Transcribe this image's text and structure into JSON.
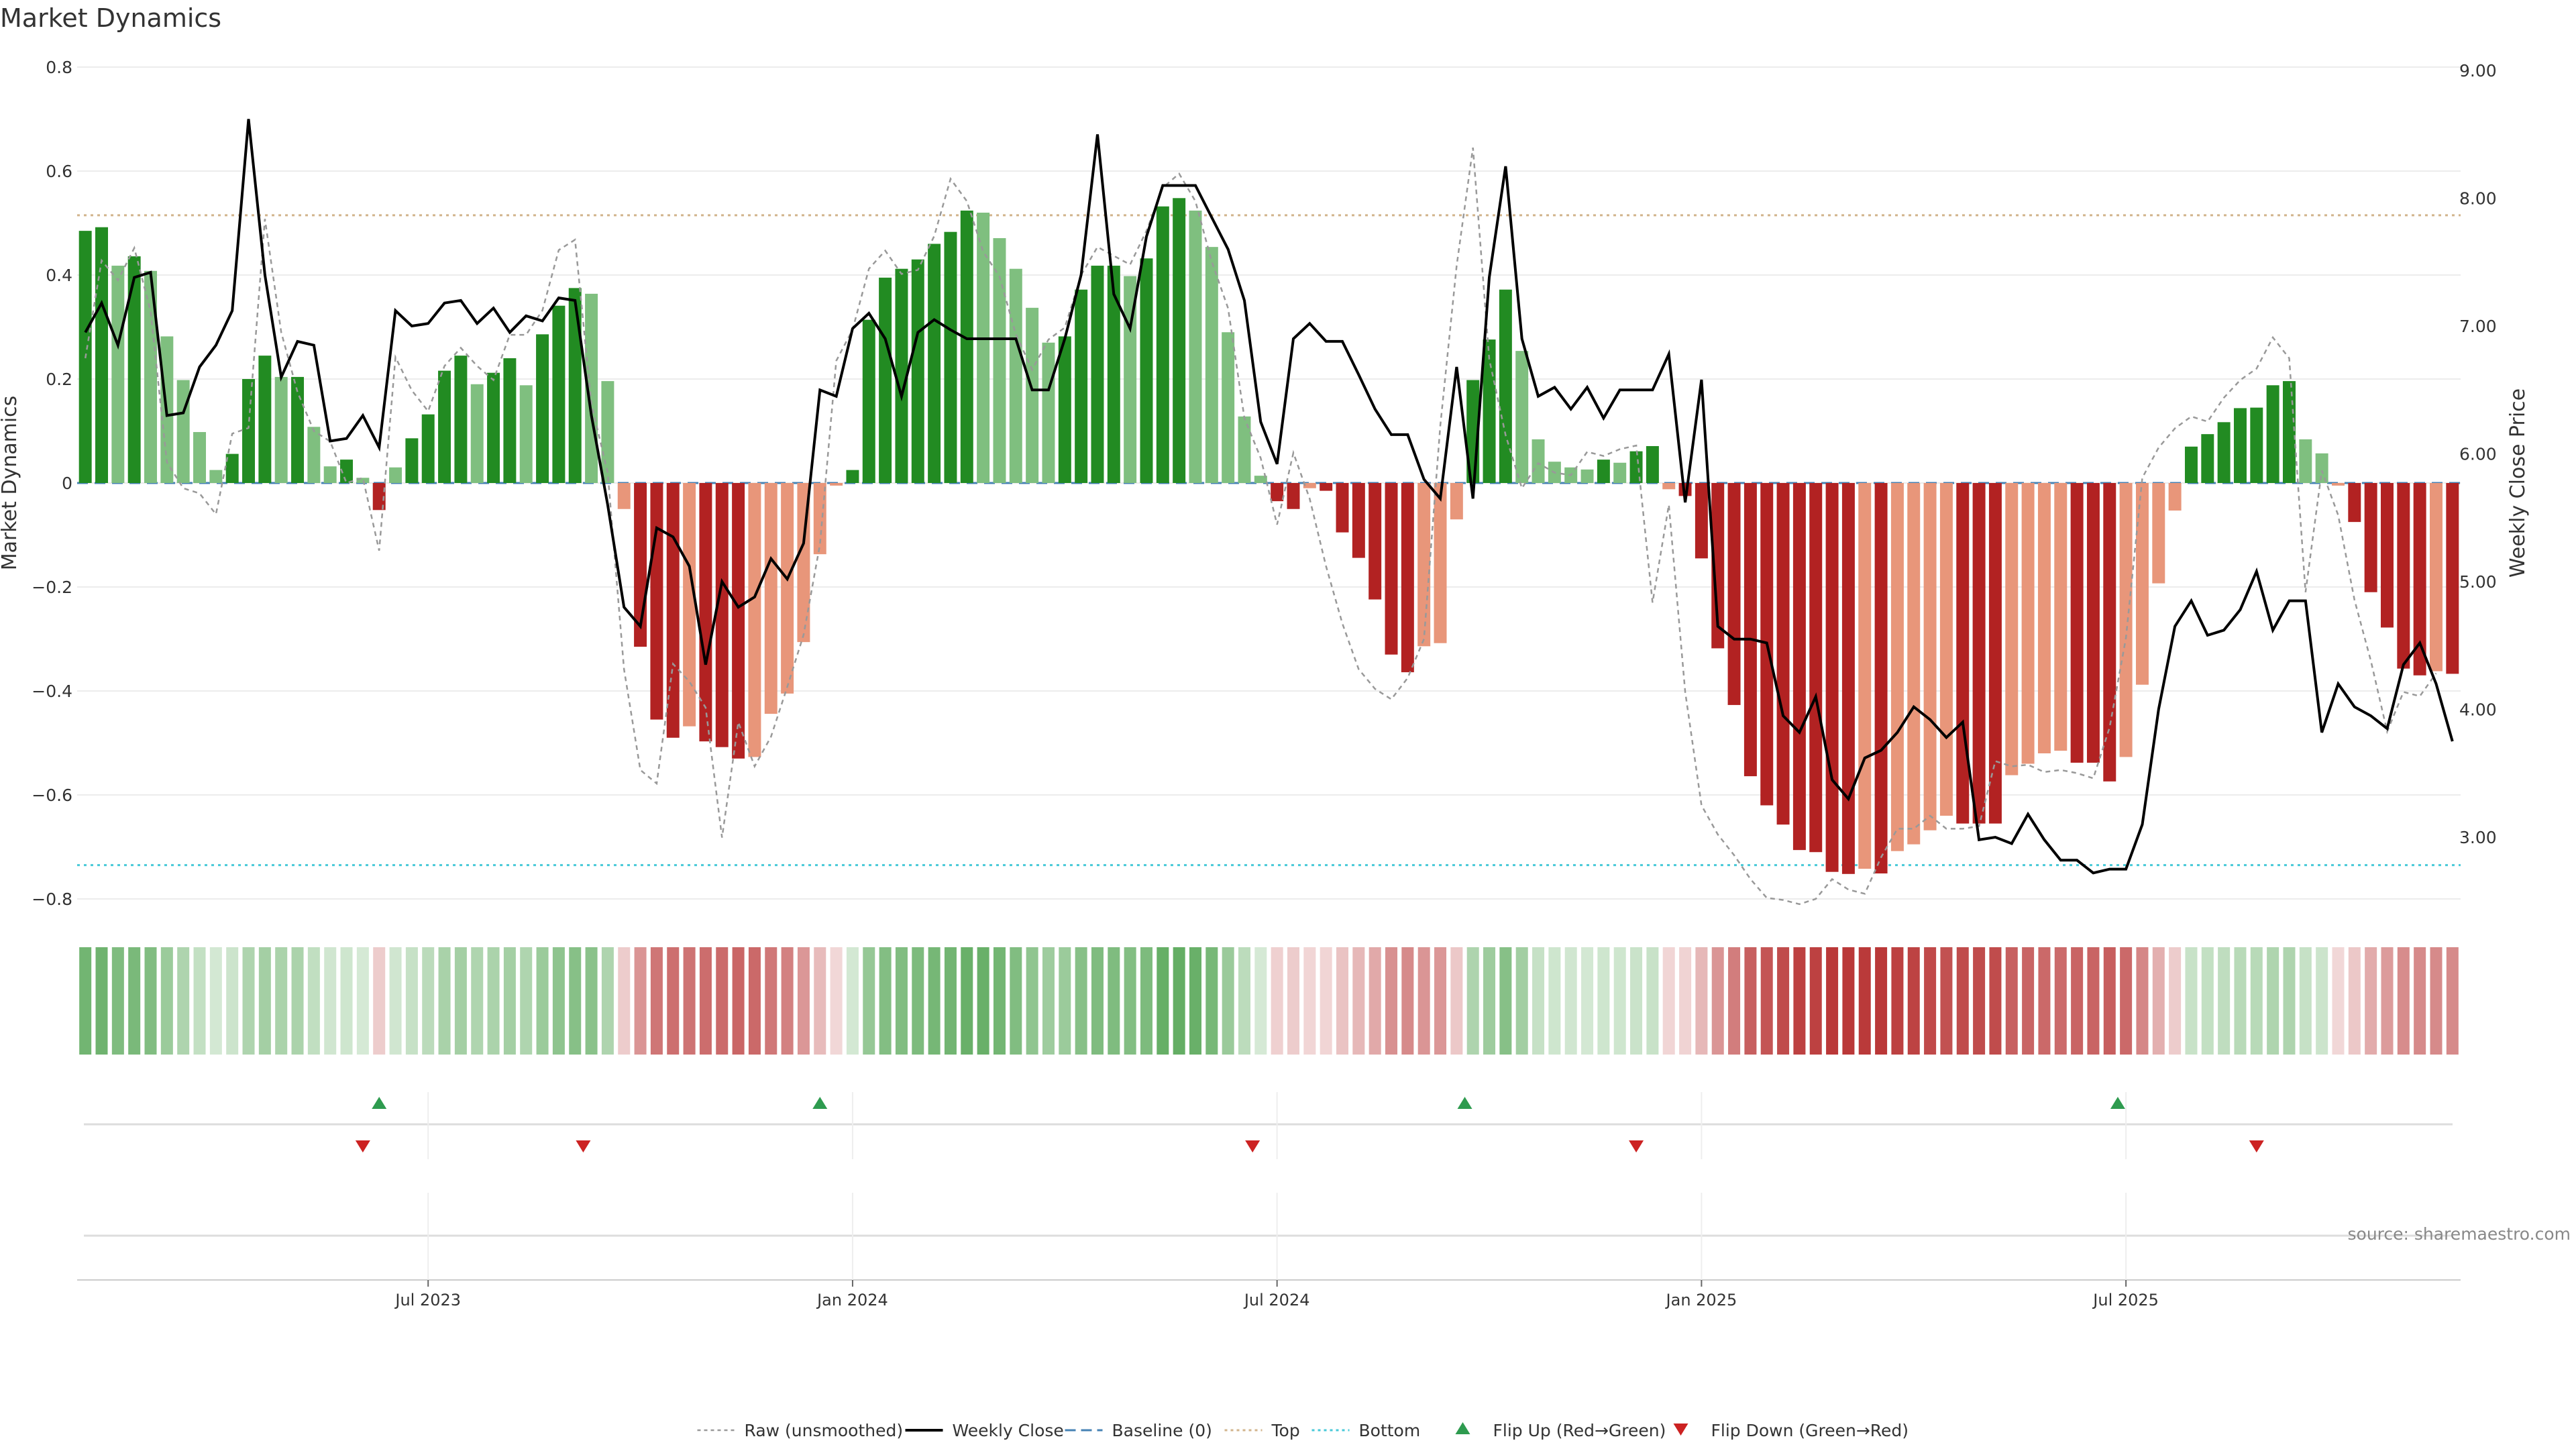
{
  "chart_data": {
    "type": "bar",
    "title": "Market Dynamics",
    "ylabel": "Market Dynamics",
    "y2label": "Weekly Close Price",
    "ylim": [
      -0.85,
      0.8
    ],
    "y2lim": [
      2.35,
      9.0
    ],
    "yticks": [
      {
        "v": 0.8,
        "label": "0.8"
      },
      {
        "v": 0.6,
        "label": "0.6"
      },
      {
        "v": 0.4,
        "label": "0.4"
      },
      {
        "v": 0.2,
        "label": "0.2"
      },
      {
        "v": 0,
        "label": "0"
      },
      {
        "v": -0.2,
        "label": "−0.2"
      },
      {
        "v": -0.4,
        "label": "−0.4"
      },
      {
        "v": -0.6,
        "label": "−0.6"
      },
      {
        "v": -0.8,
        "label": "−0.8"
      }
    ],
    "y2ticks": [
      {
        "v": 9,
        "label": "9.00"
      },
      {
        "v": 8,
        "label": "8.00"
      },
      {
        "v": 7,
        "label": "7.00"
      },
      {
        "v": 6,
        "label": "6.00"
      },
      {
        "v": 5,
        "label": "5.00"
      },
      {
        "v": 4,
        "label": "4.00"
      },
      {
        "v": 3,
        "label": "3.00"
      }
    ],
    "date_ticks": [
      {
        "week": 21.5,
        "label": "Jul 2023"
      },
      {
        "week": 47.5,
        "label": "Jan 2024"
      },
      {
        "week": 73.5,
        "label": "Jul 2024"
      },
      {
        "week": 99.5,
        "label": "Jan 2025"
      },
      {
        "week": 125.5,
        "label": "Jul 2025"
      }
    ],
    "top_line": 0.515,
    "bottom_line": -0.735,
    "bars": [
      0.485,
      0.492,
      0.418,
      0.436,
      0.408,
      0.282,
      0.198,
      0.098,
      0.025,
      0.056,
      0.2,
      0.245,
      0.204,
      0.204,
      0.108,
      0.032,
      0.045,
      0.01,
      -0.052,
      0.03,
      0.086,
      0.132,
      0.216,
      0.245,
      0.19,
      0.212,
      0.24,
      0.188,
      0.286,
      0.341,
      0.375,
      0.364,
      0.196,
      -0.05,
      -0.315,
      -0.455,
      -0.49,
      -0.468,
      -0.497,
      -0.508,
      -0.53,
      -0.527,
      -0.444,
      -0.405,
      -0.306,
      -0.137,
      -0.005,
      0.025,
      0.314,
      0.395,
      0.412,
      0.43,
      0.46,
      0.483,
      0.524,
      0.52,
      0.471,
      0.412,
      0.337,
      0.27,
      0.282,
      0.372,
      0.418,
      0.418,
      0.398,
      0.432,
      0.532,
      0.548,
      0.524,
      0.454,
      0.29,
      0.128,
      0.014,
      -0.035,
      -0.05,
      -0.01,
      -0.015,
      -0.095,
      -0.144,
      -0.224,
      -0.33,
      -0.364,
      -0.314,
      -0.308,
      -0.07,
      0.198,
      0.276,
      0.372,
      0.254,
      0.084,
      0.041,
      0.03,
      0.026,
      0.045,
      0.039,
      0.061,
      0.071,
      -0.012,
      -0.025,
      -0.145,
      -0.318,
      -0.427,
      -0.564,
      -0.62,
      -0.657,
      -0.706,
      -0.71,
      -0.748,
      -0.752,
      -0.742,
      -0.751,
      -0.708,
      -0.695,
      -0.668,
      -0.64,
      -0.655,
      -0.655,
      -0.655,
      -0.562,
      -0.54,
      -0.52,
      -0.515,
      -0.538,
      -0.538,
      -0.574,
      -0.527,
      -0.388,
      -0.193,
      -0.053,
      0.07,
      0.094,
      0.117,
      0.144,
      0.145,
      0.188,
      0.196,
      0.084,
      0.057,
      -0.005,
      -0.075,
      -0.21,
      -0.278,
      -0.357,
      -0.37,
      -0.362,
      -0.367
    ],
    "raw": [
      0.24,
      0.428,
      0.39,
      0.452,
      0.33,
      0.04,
      -0.01,
      -0.02,
      -0.06,
      0.095,
      0.106,
      0.508,
      0.29,
      0.175,
      0.1,
      0.08,
      0.0,
      0.01,
      -0.13,
      0.242,
      0.178,
      0.138,
      0.225,
      0.26,
      0.225,
      0.198,
      0.285,
      0.285,
      0.332,
      0.448,
      0.468,
      0.152,
      0.02,
      -0.358,
      -0.552,
      -0.578,
      -0.348,
      -0.382,
      -0.432,
      -0.682,
      -0.46,
      -0.545,
      -0.488,
      -0.392,
      -0.292,
      -0.118,
      0.235,
      0.295,
      0.412,
      0.447,
      0.402,
      0.41,
      0.475,
      0.585,
      0.542,
      0.445,
      0.397,
      0.286,
      0.218,
      0.276,
      0.299,
      0.4,
      0.454,
      0.437,
      0.42,
      0.485,
      0.568,
      0.595,
      0.542,
      0.426,
      0.336,
      0.125,
      0.048,
      -0.08,
      0.058,
      -0.03,
      -0.16,
      -0.27,
      -0.358,
      -0.396,
      -0.416,
      -0.375,
      -0.3,
      0.11,
      0.418,
      0.645,
      0.238,
      0.092,
      -0.01,
      0.038,
      0.02,
      0.015,
      0.06,
      0.052,
      0.065,
      0.072,
      -0.23,
      -0.042,
      -0.402,
      -0.62,
      -0.676,
      -0.716,
      -0.762,
      -0.798,
      -0.802,
      -0.81,
      -0.8,
      -0.762,
      -0.782,
      -0.79,
      -0.72,
      -0.665,
      -0.665,
      -0.64,
      -0.665,
      -0.665,
      -0.66,
      -0.535,
      -0.545,
      -0.542,
      -0.556,
      -0.552,
      -0.558,
      -0.568,
      -0.47,
      -0.298,
      0.01,
      0.068,
      0.105,
      0.128,
      0.118,
      0.164,
      0.198,
      0.22,
      0.28,
      0.24,
      -0.21,
      0.024,
      -0.062,
      -0.225,
      -0.342,
      -0.478,
      -0.402,
      -0.41,
      -0.366
    ],
    "close": [
      6.95,
      7.18,
      6.85,
      7.38,
      7.42,
      6.3,
      6.32,
      6.68,
      6.85,
      7.12,
      8.62,
      7.4,
      6.6,
      6.88,
      6.85,
      6.1,
      6.12,
      6.3,
      6.05,
      7.12,
      7.0,
      7.02,
      7.18,
      7.2,
      7.02,
      7.14,
      6.95,
      7.08,
      7.04,
      7.22,
      7.2,
      6.3,
      5.6,
      4.8,
      4.65,
      5.42,
      5.35,
      5.12,
      4.35,
      5.0,
      4.8,
      4.88,
      5.18,
      5.02,
      5.3,
      6.5,
      6.45,
      6.98,
      7.1,
      6.9,
      6.45,
      6.95,
      7.05,
      6.97,
      6.9,
      6.9,
      6.9,
      6.9,
      6.5,
      6.5,
      6.9,
      7.4,
      8.5,
      7.25,
      6.98,
      7.7,
      8.1,
      8.1,
      8.1,
      7.85,
      7.6,
      7.2,
      6.25,
      5.92,
      6.9,
      7.02,
      6.88,
      6.88,
      6.62,
      6.35,
      6.15,
      6.15,
      5.8,
      5.65,
      6.68,
      5.65,
      7.38,
      8.25,
      6.9,
      6.45,
      6.52,
      6.35,
      6.52,
      6.28,
      6.5,
      6.5,
      6.5,
      6.78,
      5.62,
      6.58,
      4.65,
      4.55,
      4.55,
      4.52,
      3.95,
      3.82,
      4.1,
      3.45,
      3.3,
      3.62,
      3.68,
      3.82,
      4.02,
      3.92,
      3.78,
      3.9,
      2.98,
      3.0,
      2.95,
      3.18,
      2.98,
      2.82,
      2.82,
      2.72,
      2.75,
      2.75,
      3.1,
      4.0,
      4.65,
      4.85,
      4.58,
      4.62,
      4.78,
      5.08,
      4.62,
      4.85,
      4.85,
      3.82,
      4.2,
      4.02,
      3.95,
      3.85,
      4.35,
      4.52,
      4.2,
      3.75
    ],
    "flip_up_weeks": [
      18.5,
      45.5,
      85.0,
      125.0
    ],
    "flip_down_weeks": [
      17.5,
      31.0,
      72.0,
      95.5,
      133.5
    ],
    "legend": [
      {
        "key": "raw",
        "label": "Raw (unsmoothed)"
      },
      {
        "key": "close",
        "label": "Weekly Close"
      },
      {
        "key": "baseline",
        "label": "Baseline (0)"
      },
      {
        "key": "top",
        "label": "Top"
      },
      {
        "key": "bottom",
        "label": "Bottom"
      },
      {
        "key": "flip_up",
        "label": "Flip Up (Red→Green)"
      },
      {
        "key": "flip_down",
        "label": "Flip Down (Green→Red)"
      }
    ],
    "legend_position": "bottom-center",
    "grid": true,
    "source": "source: sharemaestro.com",
    "colors": {
      "green_strong": "#228b22",
      "green_light": "#7fbf7f",
      "red_strong": "#b22222",
      "red_light": "#e8967a",
      "close_line": "#000000",
      "raw_line": "#999999",
      "baseline": "#4682b4",
      "top": "#d2b48c",
      "bottom": "#48c9d8",
      "flip_up": "#2e9b4f",
      "flip_down": "#cc2222"
    }
  }
}
